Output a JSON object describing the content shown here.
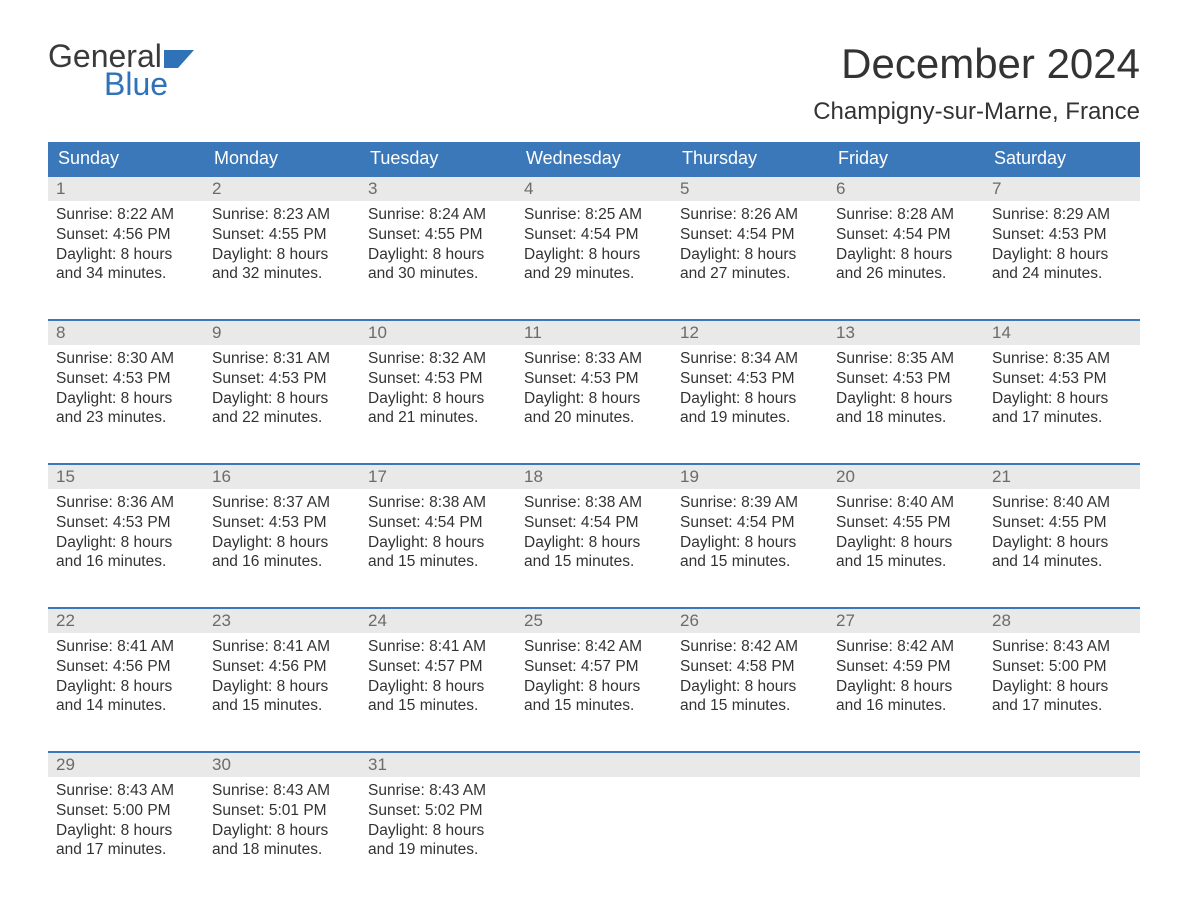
{
  "brand": {
    "part1": "General",
    "part2": "Blue",
    "text_color": "#3a3a3a",
    "accent_color": "#2f72b8"
  },
  "title": {
    "month": "December 2024",
    "location": "Champigny-sur-Marne, France",
    "title_fontsize": 42,
    "location_fontsize": 24
  },
  "style": {
    "header_bg": "#3a78b9",
    "header_text": "#ffffff",
    "daynum_bg": "#e9e9e9",
    "daynum_color": "#6b6b6b",
    "body_text": "#333333",
    "week_border": "#3a78b9",
    "page_bg": "#ffffff",
    "header_fontsize": 18,
    "daynum_fontsize": 17,
    "body_fontsize": 15.5
  },
  "columns": [
    "Sunday",
    "Monday",
    "Tuesday",
    "Wednesday",
    "Thursday",
    "Friday",
    "Saturday"
  ],
  "weeks": [
    [
      {
        "n": "1",
        "sunrise": "Sunrise: 8:22 AM",
        "sunset": "Sunset: 4:56 PM",
        "d1": "Daylight: 8 hours",
        "d2": "and 34 minutes."
      },
      {
        "n": "2",
        "sunrise": "Sunrise: 8:23 AM",
        "sunset": "Sunset: 4:55 PM",
        "d1": "Daylight: 8 hours",
        "d2": "and 32 minutes."
      },
      {
        "n": "3",
        "sunrise": "Sunrise: 8:24 AM",
        "sunset": "Sunset: 4:55 PM",
        "d1": "Daylight: 8 hours",
        "d2": "and 30 minutes."
      },
      {
        "n": "4",
        "sunrise": "Sunrise: 8:25 AM",
        "sunset": "Sunset: 4:54 PM",
        "d1": "Daylight: 8 hours",
        "d2": "and 29 minutes."
      },
      {
        "n": "5",
        "sunrise": "Sunrise: 8:26 AM",
        "sunset": "Sunset: 4:54 PM",
        "d1": "Daylight: 8 hours",
        "d2": "and 27 minutes."
      },
      {
        "n": "6",
        "sunrise": "Sunrise: 8:28 AM",
        "sunset": "Sunset: 4:54 PM",
        "d1": "Daylight: 8 hours",
        "d2": "and 26 minutes."
      },
      {
        "n": "7",
        "sunrise": "Sunrise: 8:29 AM",
        "sunset": "Sunset: 4:53 PM",
        "d1": "Daylight: 8 hours",
        "d2": "and 24 minutes."
      }
    ],
    [
      {
        "n": "8",
        "sunrise": "Sunrise: 8:30 AM",
        "sunset": "Sunset: 4:53 PM",
        "d1": "Daylight: 8 hours",
        "d2": "and 23 minutes."
      },
      {
        "n": "9",
        "sunrise": "Sunrise: 8:31 AM",
        "sunset": "Sunset: 4:53 PM",
        "d1": "Daylight: 8 hours",
        "d2": "and 22 minutes."
      },
      {
        "n": "10",
        "sunrise": "Sunrise: 8:32 AM",
        "sunset": "Sunset: 4:53 PM",
        "d1": "Daylight: 8 hours",
        "d2": "and 21 minutes."
      },
      {
        "n": "11",
        "sunrise": "Sunrise: 8:33 AM",
        "sunset": "Sunset: 4:53 PM",
        "d1": "Daylight: 8 hours",
        "d2": "and 20 minutes."
      },
      {
        "n": "12",
        "sunrise": "Sunrise: 8:34 AM",
        "sunset": "Sunset: 4:53 PM",
        "d1": "Daylight: 8 hours",
        "d2": "and 19 minutes."
      },
      {
        "n": "13",
        "sunrise": "Sunrise: 8:35 AM",
        "sunset": "Sunset: 4:53 PM",
        "d1": "Daylight: 8 hours",
        "d2": "and 18 minutes."
      },
      {
        "n": "14",
        "sunrise": "Sunrise: 8:35 AM",
        "sunset": "Sunset: 4:53 PM",
        "d1": "Daylight: 8 hours",
        "d2": "and 17 minutes."
      }
    ],
    [
      {
        "n": "15",
        "sunrise": "Sunrise: 8:36 AM",
        "sunset": "Sunset: 4:53 PM",
        "d1": "Daylight: 8 hours",
        "d2": "and 16 minutes."
      },
      {
        "n": "16",
        "sunrise": "Sunrise: 8:37 AM",
        "sunset": "Sunset: 4:53 PM",
        "d1": "Daylight: 8 hours",
        "d2": "and 16 minutes."
      },
      {
        "n": "17",
        "sunrise": "Sunrise: 8:38 AM",
        "sunset": "Sunset: 4:54 PM",
        "d1": "Daylight: 8 hours",
        "d2": "and 15 minutes."
      },
      {
        "n": "18",
        "sunrise": "Sunrise: 8:38 AM",
        "sunset": "Sunset: 4:54 PM",
        "d1": "Daylight: 8 hours",
        "d2": "and 15 minutes."
      },
      {
        "n": "19",
        "sunrise": "Sunrise: 8:39 AM",
        "sunset": "Sunset: 4:54 PM",
        "d1": "Daylight: 8 hours",
        "d2": "and 15 minutes."
      },
      {
        "n": "20",
        "sunrise": "Sunrise: 8:40 AM",
        "sunset": "Sunset: 4:55 PM",
        "d1": "Daylight: 8 hours",
        "d2": "and 15 minutes."
      },
      {
        "n": "21",
        "sunrise": "Sunrise: 8:40 AM",
        "sunset": "Sunset: 4:55 PM",
        "d1": "Daylight: 8 hours",
        "d2": "and 14 minutes."
      }
    ],
    [
      {
        "n": "22",
        "sunrise": "Sunrise: 8:41 AM",
        "sunset": "Sunset: 4:56 PM",
        "d1": "Daylight: 8 hours",
        "d2": "and 14 minutes."
      },
      {
        "n": "23",
        "sunrise": "Sunrise: 8:41 AM",
        "sunset": "Sunset: 4:56 PM",
        "d1": "Daylight: 8 hours",
        "d2": "and 15 minutes."
      },
      {
        "n": "24",
        "sunrise": "Sunrise: 8:41 AM",
        "sunset": "Sunset: 4:57 PM",
        "d1": "Daylight: 8 hours",
        "d2": "and 15 minutes."
      },
      {
        "n": "25",
        "sunrise": "Sunrise: 8:42 AM",
        "sunset": "Sunset: 4:57 PM",
        "d1": "Daylight: 8 hours",
        "d2": "and 15 minutes."
      },
      {
        "n": "26",
        "sunrise": "Sunrise: 8:42 AM",
        "sunset": "Sunset: 4:58 PM",
        "d1": "Daylight: 8 hours",
        "d2": "and 15 minutes."
      },
      {
        "n": "27",
        "sunrise": "Sunrise: 8:42 AM",
        "sunset": "Sunset: 4:59 PM",
        "d1": "Daylight: 8 hours",
        "d2": "and 16 minutes."
      },
      {
        "n": "28",
        "sunrise": "Sunrise: 8:43 AM",
        "sunset": "Sunset: 5:00 PM",
        "d1": "Daylight: 8 hours",
        "d2": "and 17 minutes."
      }
    ],
    [
      {
        "n": "29",
        "sunrise": "Sunrise: 8:43 AM",
        "sunset": "Sunset: 5:00 PM",
        "d1": "Daylight: 8 hours",
        "d2": "and 17 minutes."
      },
      {
        "n": "30",
        "sunrise": "Sunrise: 8:43 AM",
        "sunset": "Sunset: 5:01 PM",
        "d1": "Daylight: 8 hours",
        "d2": "and 18 minutes."
      },
      {
        "n": "31",
        "sunrise": "Sunrise: 8:43 AM",
        "sunset": "Sunset: 5:02 PM",
        "d1": "Daylight: 8 hours",
        "d2": "and 19 minutes."
      },
      null,
      null,
      null,
      null
    ]
  ]
}
